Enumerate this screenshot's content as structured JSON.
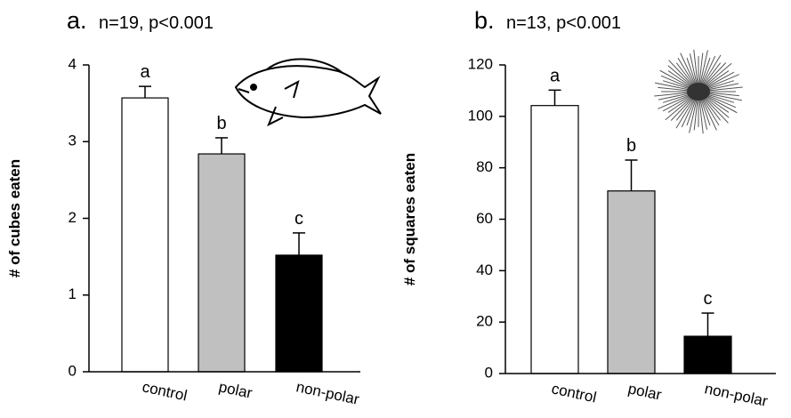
{
  "chart_data": [
    {
      "type": "bar",
      "label": "a.",
      "title": "n=19, p<0.001",
      "ylabel": "# of cubes eaten",
      "categories": [
        "control",
        "polar",
        "non-polar"
      ],
      "values": [
        3.57,
        2.84,
        1.52
      ],
      "errors": [
        0.15,
        0.21,
        0.29
      ],
      "annotations": [
        "a",
        "b",
        "c"
      ],
      "colors": [
        "#ffffff",
        "#c0c0c0",
        "#000000"
      ],
      "ylim": [
        0,
        4
      ],
      "yticks": [
        0,
        1,
        2,
        3,
        4
      ]
    },
    {
      "type": "bar",
      "label": "b.",
      "title": "n=13, p<0.001",
      "ylabel": "# of squares eaten",
      "categories": [
        "control",
        "polar",
        "non-polar"
      ],
      "values": [
        104.2,
        71,
        14.5
      ],
      "errors": [
        6,
        12,
        9
      ],
      "annotations": [
        "a",
        "b",
        "c"
      ],
      "colors": [
        "#ffffff",
        "#c0c0c0",
        "#000000"
      ],
      "ylim": [
        0,
        120
      ],
      "yticks": [
        0,
        20,
        40,
        60,
        80,
        100,
        120
      ]
    }
  ]
}
